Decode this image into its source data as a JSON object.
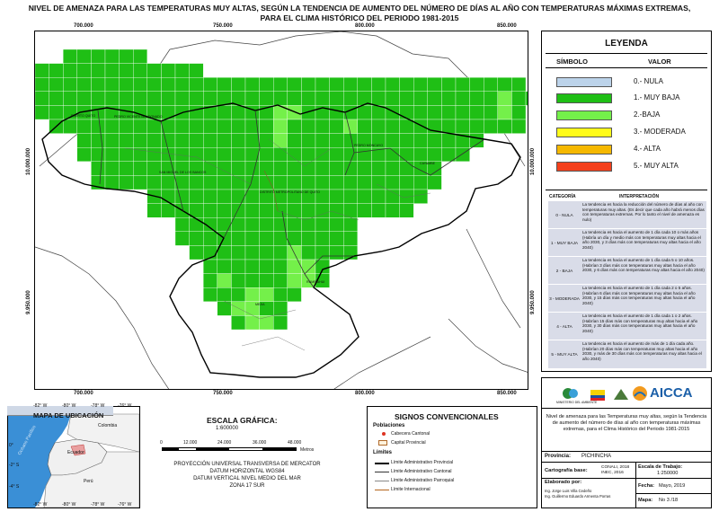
{
  "title": {
    "line1": "NIVEL DE AMENAZA PARA LAS TEMPERATURAS MUY ALTAS, SEGÚN LA TENDENCIA DE AUMENTO DEL NÚMERO DE DÍAS AL AÑO CON TEMPERATURAS MÁXIMAS EXTREMAS,",
    "line2": "PARA EL CLIMA HISTÓRICO DEL PERIODO 1981-2015"
  },
  "map": {
    "x_ticks": [
      "700.000",
      "750.000",
      "800.000",
      "850.000"
    ],
    "y_ticks": [
      "10.000.000",
      "9.950.000"
    ],
    "labels": [
      "PUERTO QUITO",
      "PEDRO VICENTE MALDONADO",
      "SAN MIGUEL DE LOS BANCOS",
      "DISTRITO METROPOLITANO DE QUITO",
      "PEDRO MONCAYO",
      "CAYAMBE",
      "RUMIÑAHUI",
      "MEJIA"
    ],
    "colors": {
      "muy_baja": "#1fbf15",
      "baja": "#74f04a",
      "water": "#ffffff"
    }
  },
  "legend": {
    "title": "LEYENDA",
    "col_symbol": "SÍMBOLO",
    "col_value": "VALOR",
    "items": [
      {
        "label": "0.- NULA",
        "color": "#bcd3ea"
      },
      {
        "label": "1.- MUY BAJA",
        "color": "#1fbf15"
      },
      {
        "label": "2.-BAJA",
        "color": "#74f04a"
      },
      {
        "label": "3.- MODERADA",
        "color": "#fffb1a"
      },
      {
        "label": "4.- ALTA",
        "color": "#f5b800"
      },
      {
        "label": "5.- MUY ALTA",
        "color": "#f4401b"
      }
    ],
    "interp_header_cat": "CATEGORÍA",
    "interp_header_txt": "INTERPRETACIÓN",
    "interp": [
      {
        "cat": "0 - NULA",
        "txt": "La tendencia es hacia la reducción del número de días al año con temperaturas muy altas. (Es decir que cada año habrá menos días con temperaturas extremas. Por lo tanto el nivel de amenaza es nulo)"
      },
      {
        "cat": "1 - MUY BAJA",
        "txt": "La tendencia es hacia el aumento de 1 día cada 10 o más años (Habría un día y medio más con temperaturas muy altas hacia el año 2030, y 3 días más con temperaturas muy altas hacia el año 2040)"
      },
      {
        "cat": "2 - BAJA",
        "txt": "La tendencia es hacia el aumento de 1 día cada 5 o 10 años. (Habrían 3 días más con temperaturas muy altas hacia el año 2030, y 6 días más con temperaturas muy altas hacia el año 2040)"
      },
      {
        "cat": "3 - MODERADA",
        "txt": "La tendencia es hacia el aumento de 1 día cada 2 o 5 años. (Habrían 6 días más con temperaturas muy altas hacia el año 2030, y 15 días más con temperaturas muy altas hacia el año 2040)"
      },
      {
        "cat": "4 - ALTA",
        "txt": "La tendencia es hacia el aumento de 1 día cada 1 o 2 años. (Habrían 15 días más con temperaturas muy altas hacia el año 2030, y 30 días más con temperaturas muy altas hacia el año 2040)"
      },
      {
        "cat": "5 - MUY ALTA",
        "txt": "La tendencia es hacia el aumento de más de 1 día cada año. (Habrían 20 días más con temperaturas muy altas hacia el año 2030, y más de 30 días más con temperaturas muy altas hacia el año 2040)"
      }
    ]
  },
  "location_map": {
    "title": "MAPA DE UBICACIÓN",
    "top_ticks": [
      "-82° W",
      "-80° W",
      "-78° W",
      "-76° W"
    ],
    "bottom_ticks": [
      "-82° W",
      "-80° W",
      "-78° W",
      "-76° W"
    ],
    "left_ticks": [
      "0°",
      "-2° S",
      "-4° S"
    ],
    "labels": {
      "colombia": "Colombia",
      "ecuador": "Ecuador",
      "peru": "Perú",
      "ocean": "Océano Pacífico"
    }
  },
  "scale": {
    "title": "ESCALA GRÁFICA:",
    "ratio": "1:600000",
    "ticks": [
      "0",
      "12.000",
      "24.000",
      "36.000",
      "48.000"
    ],
    "unit": "Metros",
    "projection": [
      "PROYECCIÓN UNIVERSAL TRANSVERSA DE MERCATOR",
      "DATUM HORIZONTAL WGS84",
      "DATUM VERTICAL NIVEL MEDIO DEL MAR",
      "ZONA 17 SUR"
    ]
  },
  "signs": {
    "title": "SIGNOS CONVENCIONALES",
    "poblaciones": "Poblaciones",
    "cabecera": "Cabecera Cantonal",
    "capital": "Capital Provincial",
    "limites": "Límites",
    "items": [
      "Límite Administrativo Provincial",
      "Límite Administrativo Cantonal",
      "Límite Administrativo Parroquial",
      "Límite Internacional"
    ]
  },
  "info": {
    "logo_text": "AICCA",
    "ministry": "MINISTERIO DEL AMBIENTE",
    "description": "Nivel de amenaza para las Temperaturas muy altas, según la Tendencia de aumento del número de días al año con temperaturas máximas extremas, para el Clima Histórico del Periodo 1981-2015",
    "province_label": "Provincia:",
    "province": "PICHINCHA",
    "cartography_label": "Cartografía base:",
    "cartography": [
      "CONALI, 2018",
      "INEC, 2016"
    ],
    "scale_label": "Escala de Trabajo:",
    "scale": "1:250000",
    "made_by_label": "Elaborado por:",
    "authors": [
      "Ing. Jorge Luis Villa Cedeño",
      "Ing. Guillermo Eduardo Armenta Porras"
    ],
    "date_label": "Fecha:",
    "date": "Mayo, 2019",
    "map_label": "Mapa:",
    "map_no": "No 3 /18"
  }
}
